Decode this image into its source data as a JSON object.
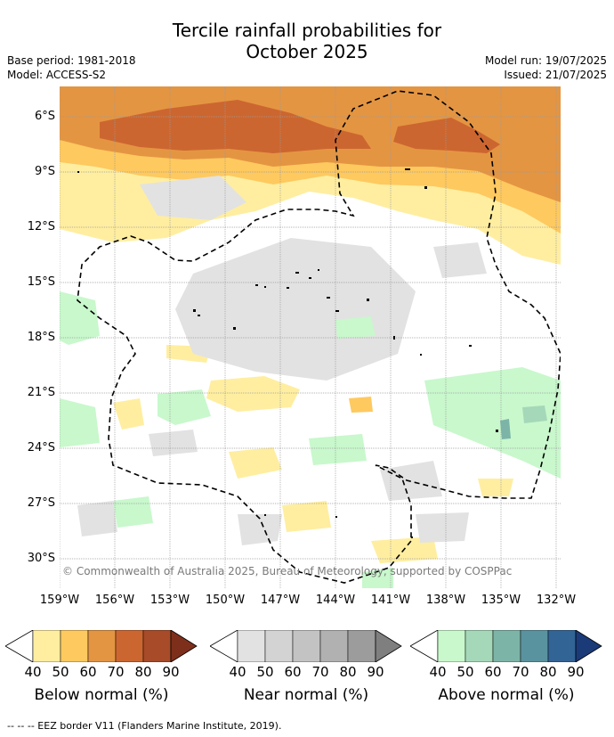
{
  "title_line1": "Tercile rainfall probabilities for",
  "title_line2": "October 2025",
  "meta_left": [
    "Base period: 1981-2018",
    "Model: ACCESS-S2"
  ],
  "meta_right": [
    "Model run: 19/07/2025",
    "Issued: 21/07/2025"
  ],
  "lat_ticks": [
    "6°S",
    "9°S",
    "12°S",
    "15°S",
    "18°S",
    "21°S",
    "24°S",
    "27°S",
    "30°S"
  ],
  "lon_ticks": [
    "159°W",
    "156°W",
    "153°W",
    "150°W",
    "147°W",
    "144°W",
    "141°W",
    "138°W",
    "135°W",
    "132°W"
  ],
  "credit": "© Commonwealth of Australia 2025, Bureau of Meteorology, supported by COSPPac",
  "legend": {
    "numbers": [
      "40",
      "50",
      "60",
      "70",
      "80",
      "90"
    ],
    "below": {
      "label": "Below normal (%)",
      "colors": [
        "#ffeea0",
        "#fec95f",
        "#e49542",
        "#cc6630",
        "#a84b28",
        "#7e2f1b"
      ]
    },
    "near": {
      "label": "Near normal (%)",
      "colors": [
        "#e2e2e2",
        "#d3d3d3",
        "#c3c3c3",
        "#b1b1b1",
        "#9c9c9c",
        "#7f7f7f"
      ]
    },
    "above": {
      "label": "Above normal (%)",
      "colors": [
        "#c8f8cc",
        "#a5d8b8",
        "#7db4a8",
        "#5a93a0",
        "#326496",
        "#1b3a78"
      ]
    }
  },
  "footnote": "--  --  -- EEZ border V11 (Flanders Marine Institute, 2019)."
}
